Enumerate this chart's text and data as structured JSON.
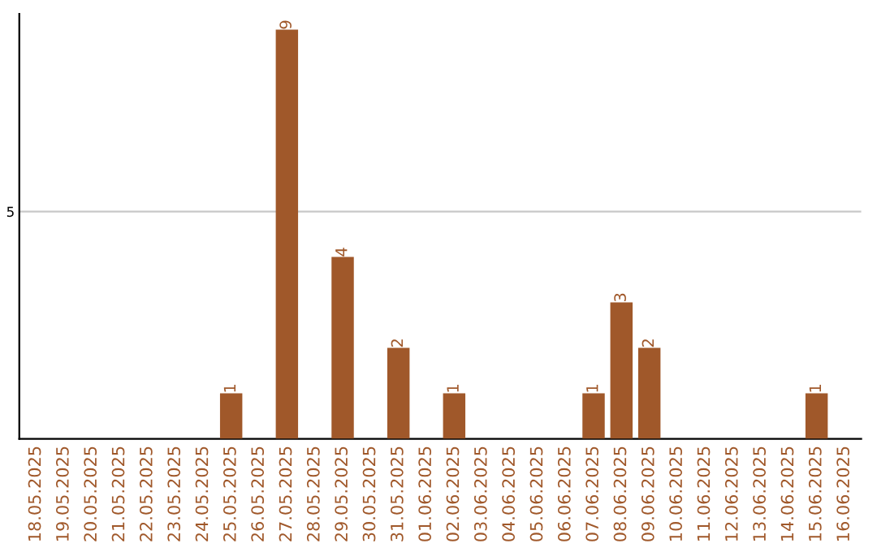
{
  "chart_data": {
    "type": "bar",
    "categories": [
      "18.05.2025",
      "19.05.2025",
      "20.05.2025",
      "21.05.2025",
      "22.05.2025",
      "23.05.2025",
      "24.05.2025",
      "25.05.2025",
      "26.05.2025",
      "27.05.2025",
      "28.05.2025",
      "29.05.2025",
      "30.05.2025",
      "31.05.2025",
      "01.06.2025",
      "02.06.2025",
      "03.06.2025",
      "04.06.2025",
      "05.06.2025",
      "06.06.2025",
      "07.06.2025",
      "08.06.2025",
      "09.06.2025",
      "10.06.2025",
      "11.06.2025",
      "12.06.2025",
      "13.06.2025",
      "14.06.2025",
      "15.06.2025",
      "16.06.2025"
    ],
    "values": [
      0,
      0,
      0,
      0,
      0,
      0,
      0,
      1,
      0,
      9,
      0,
      4,
      0,
      2,
      0,
      1,
      0,
      0,
      0,
      0,
      1,
      3,
      2,
      0,
      0,
      0,
      0,
      0,
      1,
      0
    ],
    "value_labels": [
      null,
      null,
      null,
      null,
      null,
      null,
      null,
      "1",
      null,
      "9",
      null,
      "4",
      null,
      "2",
      null,
      "1",
      null,
      null,
      null,
      null,
      "1",
      "3",
      "2",
      null,
      null,
      null,
      null,
      null,
      "1",
      null
    ],
    "color": "#a0582a",
    "ylim": [
      0,
      9.35
    ],
    "yticks": [
      5
    ],
    "grid": "y"
  }
}
